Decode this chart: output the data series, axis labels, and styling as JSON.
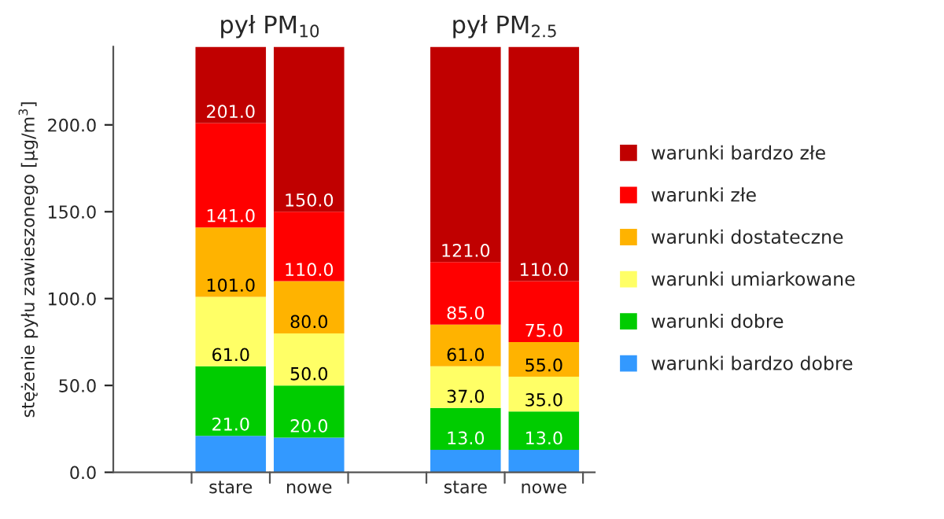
{
  "chart_data": {
    "type": "bar",
    "stacked": true,
    "categories": [
      "stare",
      "nowe",
      null,
      "stare",
      "nowe"
    ],
    "ylabel": "stężenie pyłu zawieszonego [μg/m$^{3}$]",
    "annotations": [
      "pył PM$_{10}$",
      "pył PM$_{2.5}$",
      "21.0",
      "61.0",
      "101.0",
      "141.0",
      "201.0",
      "20.0",
      "50.0",
      "80.0",
      "110.0",
      "150.0",
      "13.0",
      "37.0",
      "61.0",
      "85.0",
      "121.0",
      "13.0",
      "35.0",
      "55.0",
      "75.0",
      "110.0"
    ],
    "ylim": [
      0,
      245
    ],
    "yticks": [
      {
        "value": 0,
        "label": "0.0"
      },
      {
        "value": 50,
        "label": "50.0"
      },
      {
        "value": 100,
        "label": "100.0"
      },
      {
        "value": 150,
        "label": "150.0"
      },
      {
        "value": 200,
        "label": "200.0"
      }
    ],
    "legend": "right",
    "grid": false,
    "series": [
      {
        "name": "warunki bardzo dobre",
        "color": "#3399ff",
        "values": [
          21,
          20,
          null,
          13,
          13
        ]
      },
      {
        "name": "warunki dobre",
        "color": "#00cc00",
        "values": [
          40,
          30,
          null,
          24,
          22
        ]
      },
      {
        "name": "warunki umiarkowane",
        "color": "#ffff66",
        "values": [
          40,
          30,
          null,
          24,
          20
        ]
      },
      {
        "name": "warunki dostateczne",
        "color": "#ffb300",
        "values": [
          40,
          30,
          null,
          24,
          20
        ]
      },
      {
        "name": "warunki złe",
        "color": "#ff0000",
        "values": [
          60,
          40,
          null,
          36,
          35
        ]
      },
      {
        "name": "warunki bardzo złe",
        "color": "#c00000",
        "values": [
          44,
          95,
          null,
          124,
          135
        ]
      }
    ]
  }
}
